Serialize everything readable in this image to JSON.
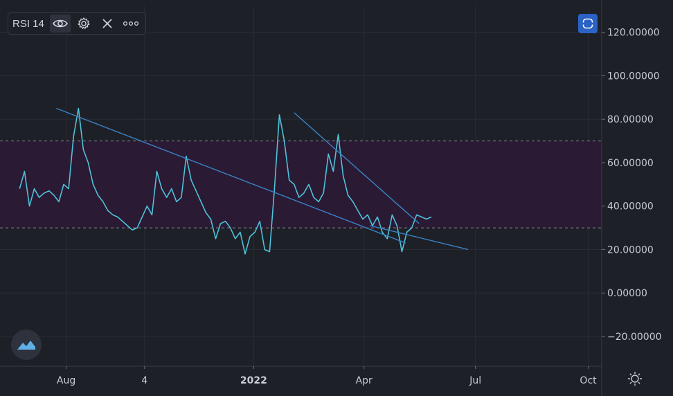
{
  "indicator": {
    "label": "RSI 14",
    "icons": [
      "eye-icon",
      "gear-icon",
      "close-icon",
      "more-icon"
    ]
  },
  "controls": {
    "fit_icon": "auto-fit-icon",
    "settings_icon": "settings-icon",
    "logo_icon": "tradingview-logo-icon"
  },
  "colors": {
    "background": "#1e2027",
    "grid": "#2a2d36",
    "rsi_line": "#4fc2d9",
    "band_fill": "#2a1a34",
    "band_line": "#8a8a99",
    "trendline": "#3b83c6",
    "axis_text": "#c9ccd4",
    "fit_button": "#2b62c6"
  },
  "chart_data": {
    "type": "line",
    "series": [
      {
        "name": "RSI 14",
        "x": [
          "2021-06-24",
          "2021-06-28",
          "2021-07-02",
          "2021-07-06",
          "2021-07-10",
          "2021-07-14",
          "2021-07-18",
          "2021-07-22",
          "2021-07-26",
          "2021-07-30",
          "2021-08-03",
          "2021-08-07",
          "2021-08-11",
          "2021-08-15",
          "2021-08-19",
          "2021-08-23",
          "2021-08-27",
          "2021-08-31",
          "2021-09-04",
          "2021-09-08",
          "2021-09-12",
          "2021-09-16",
          "2021-09-20",
          "2021-09-24",
          "2021-09-28",
          "2021-10-02",
          "2021-10-06",
          "2021-10-10",
          "2021-10-14",
          "2021-10-18",
          "2021-10-22",
          "2021-10-26",
          "2021-10-30",
          "2021-11-03",
          "2021-11-07",
          "2021-11-11",
          "2021-11-15",
          "2021-11-19",
          "2021-11-23",
          "2021-11-27",
          "2021-12-01",
          "2021-12-05",
          "2021-12-09",
          "2021-12-13",
          "2021-12-17",
          "2021-12-21",
          "2021-12-25",
          "2021-12-29",
          "2022-01-02",
          "2022-01-06",
          "2022-01-10",
          "2022-01-14",
          "2022-01-18",
          "2022-01-22",
          "2022-01-26",
          "2022-01-30",
          "2022-02-03",
          "2022-02-07",
          "2022-02-11",
          "2022-02-15",
          "2022-02-19",
          "2022-02-23",
          "2022-02-27",
          "2022-03-03",
          "2022-03-07",
          "2022-03-11",
          "2022-03-15",
          "2022-03-19",
          "2022-03-23",
          "2022-03-27",
          "2022-03-31",
          "2022-04-04",
          "2022-04-08",
          "2022-04-12",
          "2022-04-16",
          "2022-04-20",
          "2022-04-24",
          "2022-04-28",
          "2022-05-02",
          "2022-05-06",
          "2022-05-10",
          "2022-05-14",
          "2022-05-18",
          "2022-05-22",
          "2022-05-26"
        ],
        "values": [
          48,
          56,
          40,
          48,
          44,
          46,
          47,
          45,
          42,
          50,
          48,
          72,
          85,
          66,
          60,
          50,
          45,
          42,
          38,
          36,
          35,
          33,
          31,
          29,
          30,
          35,
          40,
          36,
          56,
          48,
          44,
          48,
          42,
          44,
          63,
          52,
          47,
          42,
          37,
          34,
          25,
          32,
          33,
          30,
          25,
          28,
          18,
          26,
          28,
          33,
          20,
          19,
          48,
          82,
          70,
          52,
          50,
          44,
          46,
          50,
          44,
          42,
          46,
          64,
          56,
          73,
          54,
          45,
          42,
          38,
          34,
          36,
          31,
          35,
          28,
          25,
          36,
          31,
          19,
          28,
          30,
          36,
          35,
          34,
          35
        ]
      }
    ],
    "trendlines": [
      {
        "x": [
          "2021-07-24",
          "2022-05-05"
        ],
        "y": [
          85,
          23
        ]
      },
      {
        "x": [
          "2022-02-03",
          "2022-05-16"
        ],
        "y": [
          83,
          32
        ]
      },
      {
        "x": [
          "2022-04-06",
          "2022-06-25"
        ],
        "y": [
          31,
          20
        ]
      }
    ],
    "bands": {
      "upper": 70,
      "lower": 30
    },
    "ylim": [
      -33.7,
      132
    ],
    "yticks": [
      120,
      100,
      80,
      60,
      40,
      20,
      0,
      -20
    ],
    "ytick_labels": [
      "120.00000",
      "100.00000",
      "80.00000",
      "60.00000",
      "40.00000",
      "20.00000",
      "0.00000",
      "−20.00000"
    ],
    "xticks": [
      {
        "date": "2021-08-01",
        "label": "Aug",
        "bold": false
      },
      {
        "date": "2021-10-04",
        "label": "4",
        "bold": false
      },
      {
        "date": "2022-01-01",
        "label": "2022",
        "bold": true
      },
      {
        "date": "2022-04-01",
        "label": "Apr",
        "bold": false
      },
      {
        "date": "2022-07-01",
        "label": "Jul",
        "bold": false
      },
      {
        "date": "2022-10-01",
        "label": "Oct",
        "bold": false
      }
    ],
    "grid": true
  }
}
